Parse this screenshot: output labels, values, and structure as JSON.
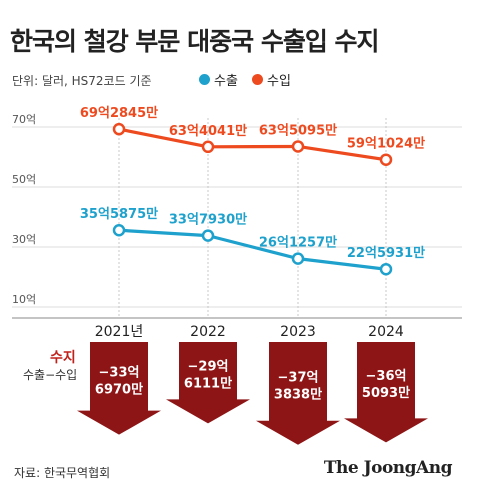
{
  "header": {
    "title": "한국의 철강 부문 대중국 수출입 수지",
    "unit_note": "단위: 달러, HS72코드 기준"
  },
  "legend": [
    {
      "name": "수출",
      "color": "#1ea1cc"
    },
    {
      "name": "수입",
      "color": "#ee4a1f"
    }
  ],
  "chart_data": {
    "type": "line",
    "categories": [
      "2021년",
      "2022",
      "2023",
      "2024"
    ],
    "ylim": [
      10,
      70
    ],
    "y_ticks": [
      {
        "value": 70,
        "label": "70억"
      },
      {
        "value": 50,
        "label": "50억"
      },
      {
        "value": 30,
        "label": "30억"
      },
      {
        "value": 10,
        "label": "10억"
      }
    ],
    "series": [
      {
        "name": "수출",
        "color": "#1ea1cc",
        "values": [
          35.5875,
          33.793,
          26.1257,
          22.5931
        ],
        "labels": [
          "35억5875만",
          "33억7930만",
          "26억1257만",
          "22억5931만"
        ]
      },
      {
        "name": "수입",
        "color": "#ee4a1f",
        "values": [
          69.2845,
          63.4041,
          63.5095,
          59.1024
        ],
        "labels": [
          "69억2845만",
          "63억4041만",
          "63억5095만",
          "59억1024만"
        ]
      }
    ],
    "balance": {
      "title": "수지",
      "subtitle": "수출−수입",
      "color": "#8e1516",
      "values": [
        -33.697,
        -29.6111,
        -37.3838,
        -36.5093
      ],
      "labels": [
        [
          "−33억",
          "6970만"
        ],
        [
          "−29억",
          "6111만"
        ],
        [
          "−37억",
          "3838만"
        ],
        [
          "−36억",
          "5093만"
        ]
      ]
    },
    "grid": true
  },
  "footer": {
    "source": "자료: 한국무역협회",
    "brand": "The JoongAng"
  }
}
